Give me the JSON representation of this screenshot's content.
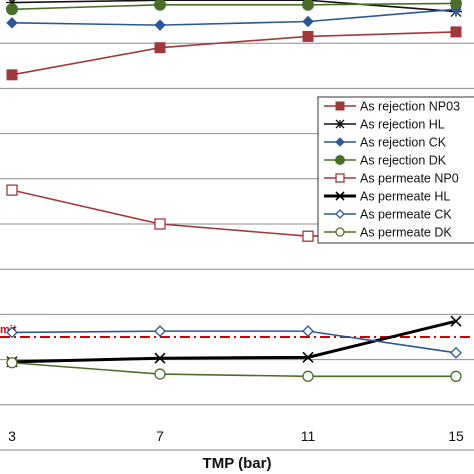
{
  "chart_data": {
    "type": "line",
    "xlabel": "TMP (bar)",
    "ylabel": "",
    "categories": [
      "3",
      "7",
      "11",
      "15"
    ],
    "x": [
      3,
      7,
      11,
      15
    ],
    "xlim": [
      3,
      15
    ],
    "ylim": [
      0,
      100
    ],
    "grid": true,
    "legend_position": "right",
    "limit_label": "mit",
    "series": [
      {
        "name": "As rejection NP03",
        "marker": "filled-square",
        "color": "#a0393a",
        "line_width": 1.6,
        "values": [
          83,
          89,
          91.5,
          92.5
        ]
      },
      {
        "name": "As rejection HL",
        "marker": "asterisk",
        "color": "#111111",
        "line_width": 1.6,
        "values": [
          99,
          99.5,
          99.5,
          97
        ]
      },
      {
        "name": "As rejection CK",
        "marker": "filled-diamond",
        "color": "#2b5797",
        "line_width": 1.6,
        "values": [
          94.5,
          94,
          94.8,
          97.5
        ]
      },
      {
        "name": "As rejection DK",
        "marker": "filled-circle",
        "color": "#4a6e2a",
        "line_width": 1.6,
        "values": [
          97.5,
          98.5,
          98.5,
          98.8
        ]
      },
      {
        "name": "As permeate NP0",
        "marker": "open-square",
        "color": "#a0393a",
        "line_width": 1.6,
        "values": [
          57.5,
          50,
          47.3,
          48.3
        ]
      },
      {
        "name": "As permeate HL",
        "marker": "x",
        "color": "#000000",
        "line_width": 3,
        "values": [
          19.5,
          20.3,
          20.5,
          28.5
        ]
      },
      {
        "name": "As permeate CK",
        "marker": "open-diamond",
        "color": "#2b5797",
        "line_width": 1.6,
        "values": [
          26,
          26.3,
          26.3,
          21.5
        ]
      },
      {
        "name": "As permeate DK",
        "marker": "open-circle",
        "color": "#4a6e2a",
        "line_width": 1.6,
        "values": [
          19.3,
          16.8,
          16.3,
          16.3
        ]
      }
    ],
    "limit_line": {
      "value": 25,
      "color": "#cc0000"
    }
  }
}
